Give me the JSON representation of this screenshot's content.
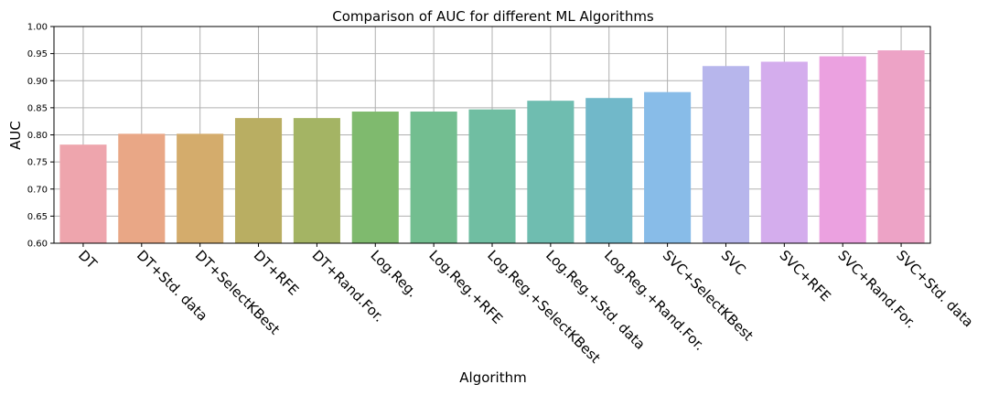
{
  "chart_data": {
    "type": "bar",
    "title": "Comparison of AUC for different ML Algorithms",
    "xlabel": "Algorithm",
    "ylabel": "AUC",
    "ylim": [
      0.6,
      1.0
    ],
    "yticks": [
      "0.60",
      "0.65",
      "0.70",
      "0.75",
      "0.80",
      "0.85",
      "0.90",
      "0.95",
      "1.00"
    ],
    "grid": true,
    "categories": [
      "DT",
      "DT+Std. data",
      "DT+SelectKBest",
      "DT+RFE",
      "DT+Rand.For.",
      "Log.Reg.",
      "Log.Reg.+RFE",
      "Log.Reg.+SelectKBest",
      "Log.Reg.+Std. data",
      "Log.Reg.+Rand.For.",
      "SVC+SelectKBest",
      "SVC",
      "SVC+RFE",
      "SVC+Rand.For.",
      "SVC+Std. data"
    ],
    "values": [
      0.782,
      0.802,
      0.802,
      0.831,
      0.831,
      0.843,
      0.843,
      0.847,
      0.863,
      0.868,
      0.879,
      0.927,
      0.935,
      0.945,
      0.956
    ],
    "colors": [
      "#eea5ad",
      "#e9a786",
      "#d4ac6c",
      "#b9ae62",
      "#a4b464",
      "#7fba6e",
      "#73be90",
      "#70bea2",
      "#6fbdb0",
      "#71b8c9",
      "#88bce8",
      "#b7b6ec",
      "#d4aded",
      "#eba1e0",
      "#eda3c6"
    ]
  }
}
